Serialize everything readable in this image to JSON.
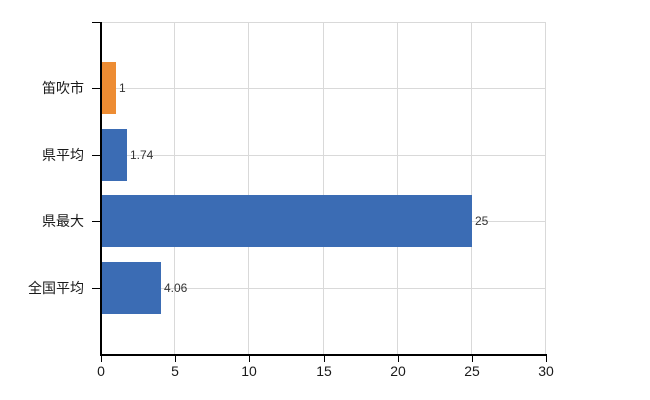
{
  "chart_data": {
    "type": "bar",
    "orientation": "horizontal",
    "title": "",
    "xlabel": "",
    "ylabel": "",
    "categories": [
      "笛吹市",
      "県平均",
      "県最大",
      "全国平均"
    ],
    "values": [
      1,
      1.74,
      25,
      4.06
    ],
    "value_labels": [
      "1",
      "1.74",
      "25",
      "4.06"
    ],
    "xlim": [
      0,
      30
    ],
    "x_ticks": [
      0,
      5,
      10,
      15,
      20,
      25,
      30
    ],
    "x_tick_labels": [
      "0",
      "5",
      "10",
      "15",
      "20",
      "25",
      "30"
    ],
    "grid": true,
    "legend": false,
    "bar_colors": [
      "#ed8c33",
      "#3b6cb4",
      "#3b6cb4",
      "#3b6cb4"
    ],
    "grid_color": "#d9d9d9",
    "axis_color": "#000000",
    "tick_label_color": "#1a1a1a",
    "value_label_color": "#333333",
    "background_color": "#ffffff"
  }
}
